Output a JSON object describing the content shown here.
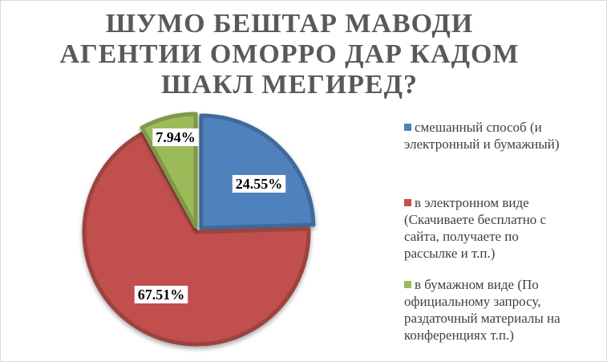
{
  "chart_data": {
    "type": "pie",
    "title": "ШУМО БЕШТАР МАВОДИ АГЕНТИИ ОМОРРО ДАР КАДОМ ШАКЛ МЕГИРЕД?",
    "slices": [
      {
        "label": "смешанный способ (и электронный и бумажный)",
        "value": 24.55,
        "value_label": "24.55%",
        "color": "#4f81bd"
      },
      {
        "label": "в электронном виде (Скачиваете бесплатно с сайта, получаете по рассылке и т.п.)",
        "value": 67.51,
        "value_label": "67.51%",
        "color": "#c0504d"
      },
      {
        "label": "в бумажном виде (По официальному запросу, раздаточный материалы на конференциях т.п.)",
        "value": 7.94,
        "value_label": "7.94%",
        "color": "#9bbb59"
      }
    ],
    "legend_position": "right",
    "style": "3d-effect"
  },
  "legend": [
    {
      "lines": [
        "смешанный способ (и",
        "электронный и бумажный)"
      ]
    },
    {
      "lines": [
        "в электронном виде",
        "(Скачиваете бесплатно с",
        "сайта, получаете по",
        "рассылке и т.п.)"
      ]
    },
    {
      "lines": [
        "в бумажном виде (По",
        "официальному запросу,",
        "раздаточный материалы на",
        "конференциях т.п.)"
      ]
    }
  ]
}
